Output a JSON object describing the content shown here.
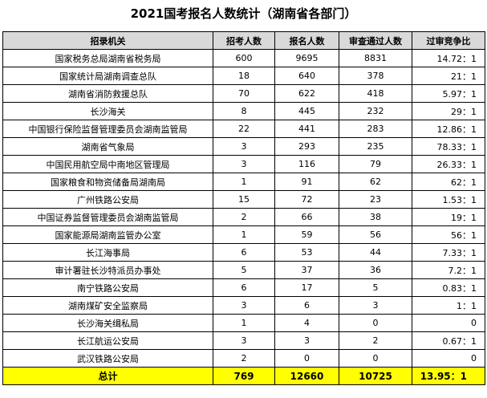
{
  "title": "2021国考报名人数统计（湖南省各部门）",
  "headers": [
    "招录机关",
    "招考人数",
    "报名人数",
    "审查通过人数",
    "过审竞争比"
  ],
  "rows": [
    [
      "国家税务总局湖南省税务局",
      "600",
      "9695",
      "8831",
      "14.72：1"
    ],
    [
      "国家统计局湖南调查总队",
      "18",
      "640",
      "378",
      "21：1"
    ],
    [
      "湖南省消防救援总队",
      "70",
      "622",
      "418",
      "5.97：1"
    ],
    [
      "长沙海关",
      "8",
      "445",
      "232",
      "29：1"
    ],
    [
      "中国银行保险监督管理委员会湖南监管局",
      "22",
      "441",
      "283",
      "12.86：1"
    ],
    [
      "湖南省气象局",
      "3",
      "293",
      "235",
      "78.33：1"
    ],
    [
      "中国民用航空局中南地区管理局",
      "3",
      "116",
      "79",
      "26.33：1"
    ],
    [
      "国家粮食和物资储备局湖南局",
      "1",
      "91",
      "62",
      "62：1"
    ],
    [
      "广州铁路公安局",
      "15",
      "72",
      "23",
      "1.53：1"
    ],
    [
      "中国证券监督管理委员会湖南监管局",
      "2",
      "66",
      "38",
      "19：1"
    ],
    [
      "国家能源局湖南监管办公室",
      "1",
      "59",
      "56",
      "56：1"
    ],
    [
      "长江海事局",
      "6",
      "53",
      "44",
      "7.33：1"
    ],
    [
      "审计署驻长沙特派员办事处",
      "5",
      "37",
      "36",
      "7.2：1"
    ],
    [
      "南宁铁路公安局",
      "6",
      "17",
      "5",
      "0.83：1"
    ],
    [
      "湖南煤矿安全监察局",
      "3",
      "6",
      "3",
      "1：1"
    ],
    [
      "长沙海关缉私局",
      "1",
      "4",
      "0",
      "0"
    ],
    [
      "长江航运公安局",
      "3",
      "3",
      "2",
      "0.67：1"
    ],
    [
      "武汉铁路公安局",
      "2",
      "0",
      "0",
      "0"
    ]
  ],
  "total": [
    "总计",
    "769",
    "12660",
    "10725",
    "13.95：1"
  ]
}
